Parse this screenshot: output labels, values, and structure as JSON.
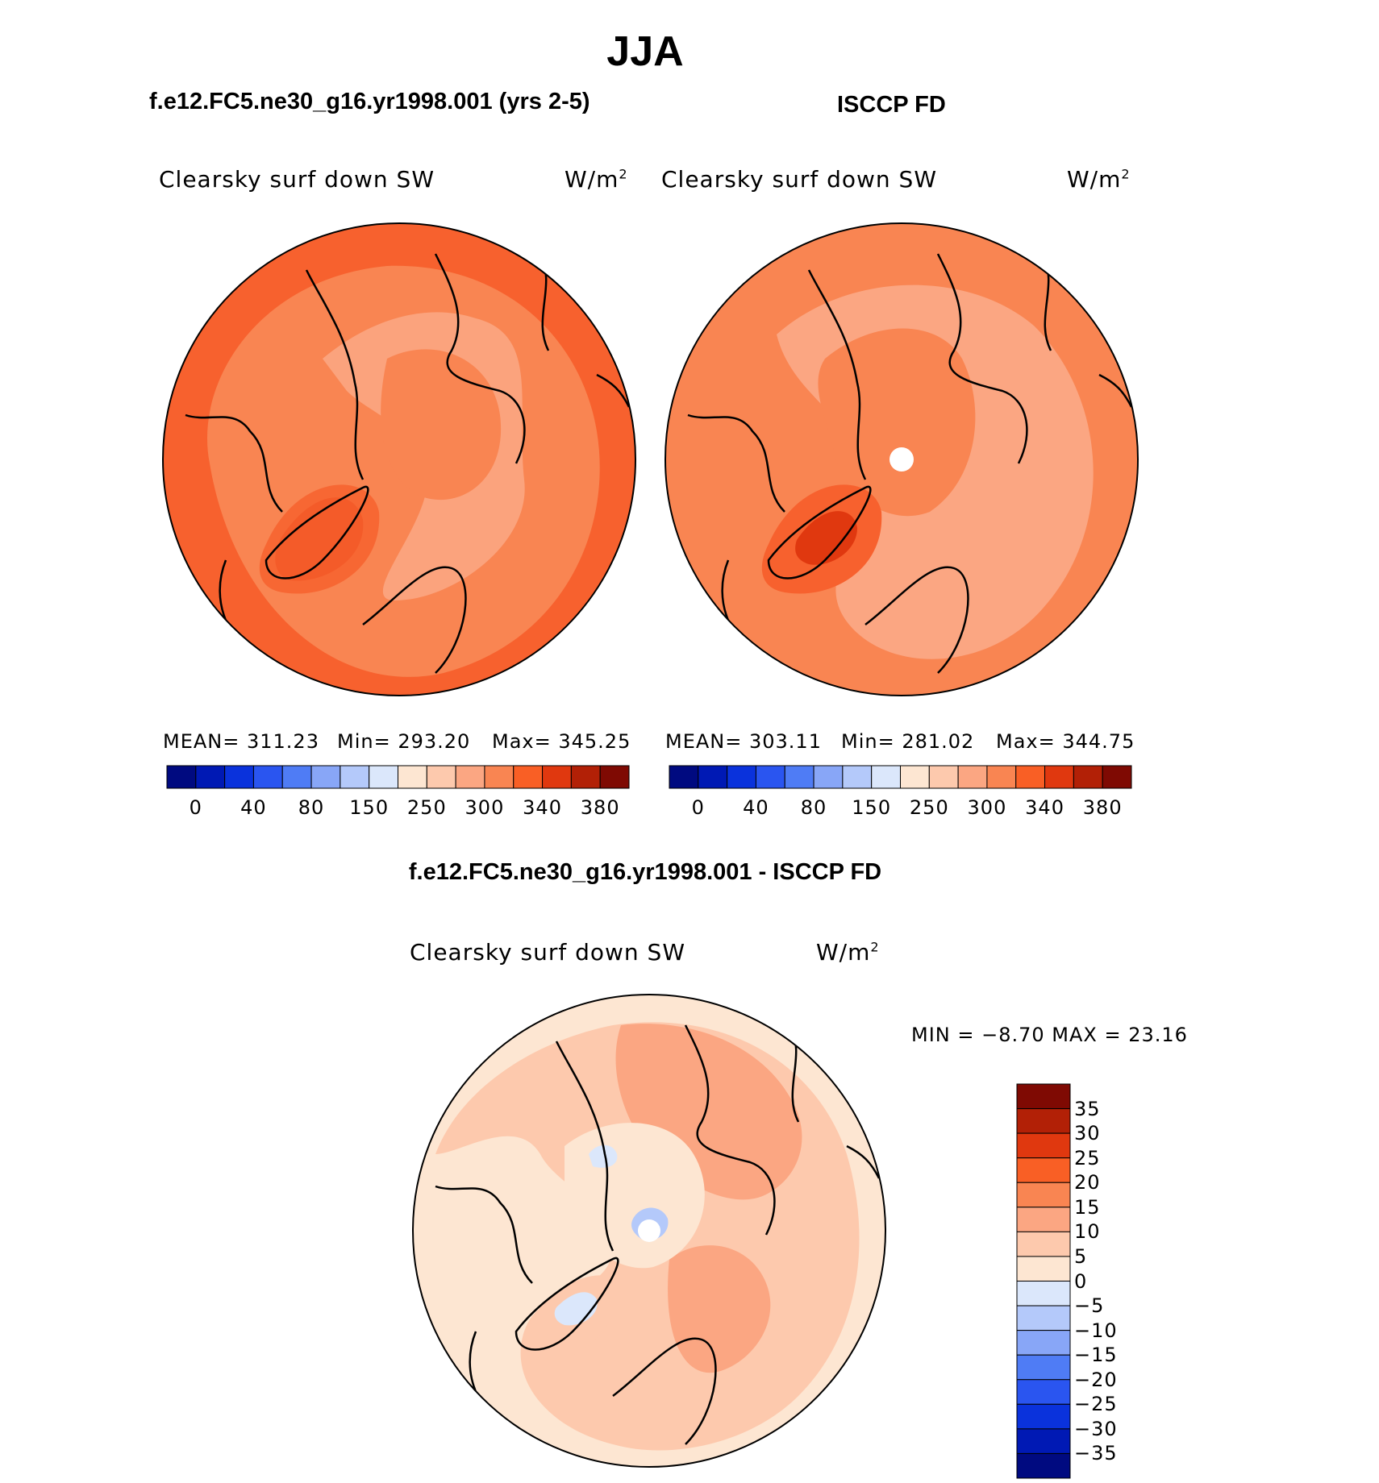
{
  "main_title": "JJA",
  "panels": [
    {
      "title": "f.e12.FC5.ne30_g16.yr1998.001 (yrs 2-5)",
      "label": "Clearsky surf down SW",
      "unit": "W/m",
      "unit_sup": "2",
      "stats": {
        "mean": "MEAN=  311.23",
        "min": "Min=  293.20",
        "max": "Max=  345.25"
      }
    },
    {
      "title": "ISCCP FD",
      "label": "Clearsky surf down SW",
      "unit": "W/m",
      "unit_sup": "2",
      "stats": {
        "mean": "MEAN=  303.11",
        "min": "Min=  281.02",
        "max": "Max=  344.75"
      }
    }
  ],
  "diff_panel": {
    "title": "f.e12.FC5.ne30_g16.yr1998.001 - ISCCP FD",
    "label": "Clearsky surf down SW",
    "unit": "W/m",
    "unit_sup": "2",
    "minmax": "MIN =   −8.70  MAX =   23.16"
  },
  "colorbar_abs": {
    "tick_labels": [
      "0",
      "40",
      "80",
      "150",
      "250",
      "300",
      "340",
      "380"
    ],
    "colors": [
      "#000a80",
      "#0019b4",
      "#0a32dc",
      "#2a55f0",
      "#4f7cf5",
      "#88a6f7",
      "#b4c9fa",
      "#dbe7fb",
      "#fde6d2",
      "#fdc9ad",
      "#fba682",
      "#f98552",
      "#f95f25",
      "#e0380f",
      "#b22006",
      "#7f0a03"
    ]
  },
  "colorbar_diff": {
    "tick_labels": [
      "35",
      "30",
      "25",
      "20",
      "15",
      "10",
      "5",
      "0",
      "−5",
      "−10",
      "−15",
      "−20",
      "−25",
      "−30",
      "−35"
    ],
    "colors": [
      "#7f0a03",
      "#b22006",
      "#e0380f",
      "#f95f25",
      "#f98552",
      "#fba682",
      "#fdc9ad",
      "#fde6d2",
      "#dbe7fb",
      "#b4c9fa",
      "#88a6f7",
      "#4f7cf5",
      "#2a55f0",
      "#0a32dc",
      "#0019b4",
      "#000a80"
    ]
  },
  "map_colors": {
    "high": "#f7612e",
    "mid": "#f98552",
    "low": "#fba682",
    "lower": "#fdc9ad",
    "peak": "#e0380f",
    "zero": "#fde6d2",
    "neg": "#dbe7fb"
  }
}
